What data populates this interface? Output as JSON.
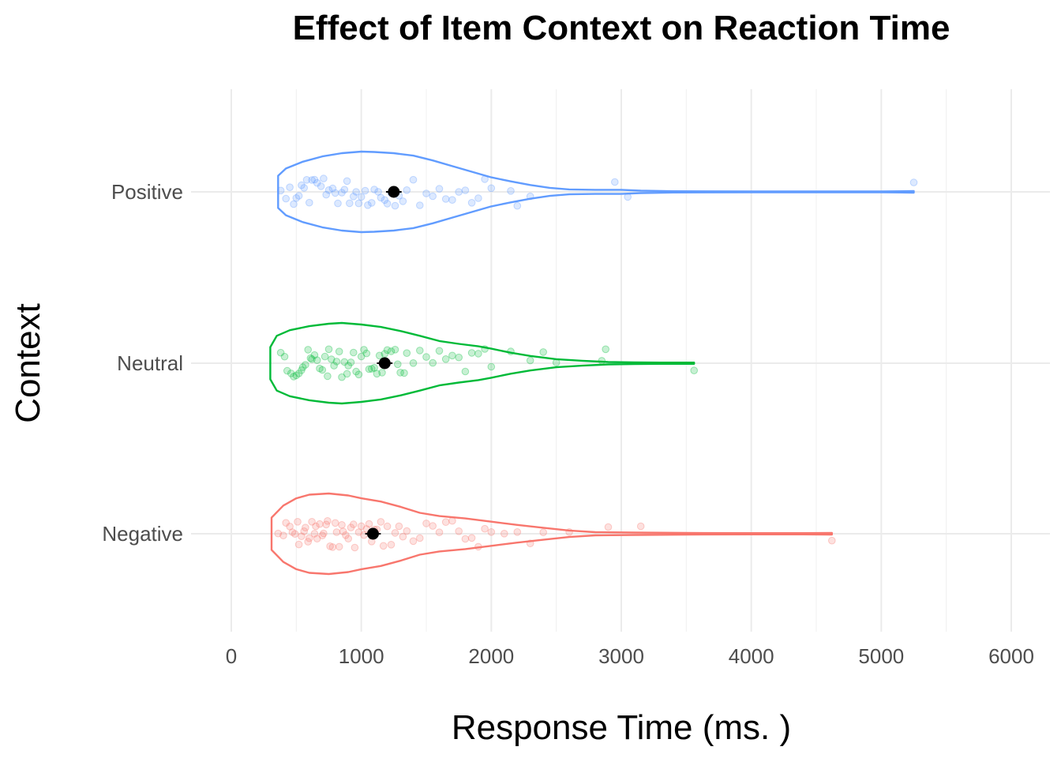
{
  "chart_data": {
    "type": "violin",
    "title": "Effect of Item Context on Reaction Time",
    "xlabel": "Response Time (ms. )",
    "ylabel": "Context",
    "xlim": [
      0,
      6000
    ],
    "x_ticks": [
      "0",
      "1000",
      "2000",
      "3000",
      "4000",
      "5000",
      "6000"
    ],
    "x_tick_values": [
      0,
      1000,
      2000,
      3000,
      4000,
      5000,
      6000
    ],
    "grid": true,
    "orientation": "horizontal",
    "categories": [
      "Negative",
      "Neutral",
      "Positive"
    ],
    "series": [
      {
        "color": "#f8766d",
        "min": 310,
        "max": 4620,
        "mean": 1090,
        "ci": [
          1030,
          1150
        ],
        "density_profile": [
          [
            310,
            0.4
          ],
          [
            400,
            0.7
          ],
          [
            500,
            0.88
          ],
          [
            600,
            0.97
          ],
          [
            750,
            1.0
          ],
          [
            900,
            0.95
          ],
          [
            1000,
            0.88
          ],
          [
            1150,
            0.8
          ],
          [
            1300,
            0.67
          ],
          [
            1450,
            0.52
          ],
          [
            1600,
            0.44
          ],
          [
            1800,
            0.38
          ],
          [
            2000,
            0.3
          ],
          [
            2200,
            0.22
          ],
          [
            2400,
            0.15
          ],
          [
            2600,
            0.08
          ],
          [
            2800,
            0.04
          ],
          [
            3100,
            0.03
          ],
          [
            3500,
            0.02
          ],
          [
            4000,
            0.015
          ],
          [
            4400,
            0.015
          ],
          [
            4620,
            0.02
          ]
        ],
        "points": [
          360,
          400,
          420,
          450,
          470,
          490,
          510,
          520,
          540,
          560,
          570,
          590,
          600,
          620,
          640,
          650,
          660,
          680,
          700,
          710,
          730,
          740,
          760,
          780,
          800,
          810,
          830,
          850,
          860,
          880,
          900,
          920,
          940,
          950,
          980,
          1000,
          1020,
          1040,
          1060,
          1080,
          1100,
          1120,
          1150,
          1170,
          1200,
          1230,
          1260,
          1290,
          1320,
          1350,
          1400,
          1450,
          1500,
          1550,
          1600,
          1650,
          1700,
          1750,
          1800,
          1850,
          1900,
          1950,
          2000,
          2100,
          2200,
          2300,
          2400,
          2600,
          2900,
          3150,
          4620
        ]
      },
      {
        "color": "#00ba38",
        "min": 300,
        "max": 3560,
        "mean": 1180,
        "ci": [
          1120,
          1240
        ],
        "density_profile": [
          [
            300,
            0.4
          ],
          [
            350,
            0.68
          ],
          [
            450,
            0.82
          ],
          [
            600,
            0.92
          ],
          [
            750,
            0.98
          ],
          [
            850,
            1.0
          ],
          [
            1000,
            0.96
          ],
          [
            1150,
            0.9
          ],
          [
            1300,
            0.8
          ],
          [
            1450,
            0.68
          ],
          [
            1600,
            0.55
          ],
          [
            1750,
            0.48
          ],
          [
            1900,
            0.42
          ],
          [
            2000,
            0.36
          ],
          [
            2150,
            0.26
          ],
          [
            2300,
            0.18
          ],
          [
            2500,
            0.1
          ],
          [
            2700,
            0.06
          ],
          [
            2900,
            0.03
          ],
          [
            3100,
            0.02
          ],
          [
            3300,
            0.015
          ],
          [
            3560,
            0.015
          ]
        ],
        "points": [
          380,
          410,
          430,
          460,
          480,
          500,
          520,
          540,
          550,
          570,
          590,
          610,
          620,
          640,
          660,
          680,
          700,
          720,
          740,
          750,
          770,
          790,
          810,
          830,
          850,
          870,
          890,
          900,
          920,
          940,
          960,
          980,
          1000,
          1020,
          1040,
          1060,
          1080,
          1100,
          1120,
          1140,
          1160,
          1180,
          1200,
          1230,
          1260,
          1280,
          1300,
          1330,
          1350,
          1400,
          1450,
          1500,
          1550,
          1600,
          1650,
          1700,
          1750,
          1800,
          1850,
          1900,
          1950,
          2000,
          2150,
          2300,
          2400,
          2500,
          2850,
          2880,
          3560
        ]
      },
      {
        "color": "#619cff",
        "min": 360,
        "max": 5250,
        "mean": 1250,
        "ci": [
          1190,
          1310
        ],
        "density_profile": [
          [
            360,
            0.4
          ],
          [
            420,
            0.58
          ],
          [
            550,
            0.75
          ],
          [
            700,
            0.88
          ],
          [
            850,
            0.96
          ],
          [
            1000,
            1.0
          ],
          [
            1100,
            0.99
          ],
          [
            1250,
            0.96
          ],
          [
            1400,
            0.9
          ],
          [
            1550,
            0.78
          ],
          [
            1700,
            0.64
          ],
          [
            1850,
            0.5
          ],
          [
            2000,
            0.36
          ],
          [
            2150,
            0.26
          ],
          [
            2300,
            0.17
          ],
          [
            2450,
            0.1
          ],
          [
            2600,
            0.06
          ],
          [
            2800,
            0.05
          ],
          [
            3000,
            0.05
          ],
          [
            3150,
            0.03
          ],
          [
            3400,
            0.015
          ],
          [
            4000,
            0.01
          ],
          [
            4600,
            0.01
          ],
          [
            5000,
            0.01
          ],
          [
            5250,
            0.02
          ]
        ],
        "points": [
          380,
          420,
          450,
          480,
          500,
          520,
          540,
          560,
          580,
          600,
          620,
          640,
          660,
          690,
          710,
          730,
          750,
          780,
          800,
          820,
          850,
          870,
          890,
          910,
          940,
          960,
          980,
          1000,
          1030,
          1050,
          1080,
          1100,
          1130,
          1150,
          1180,
          1200,
          1230,
          1260,
          1290,
          1320,
          1350,
          1400,
          1450,
          1500,
          1550,
          1600,
          1650,
          1700,
          1750,
          1800,
          1850,
          1900,
          1950,
          2000,
          2150,
          2200,
          2300,
          2950,
          3050,
          5250
        ]
      }
    ]
  }
}
